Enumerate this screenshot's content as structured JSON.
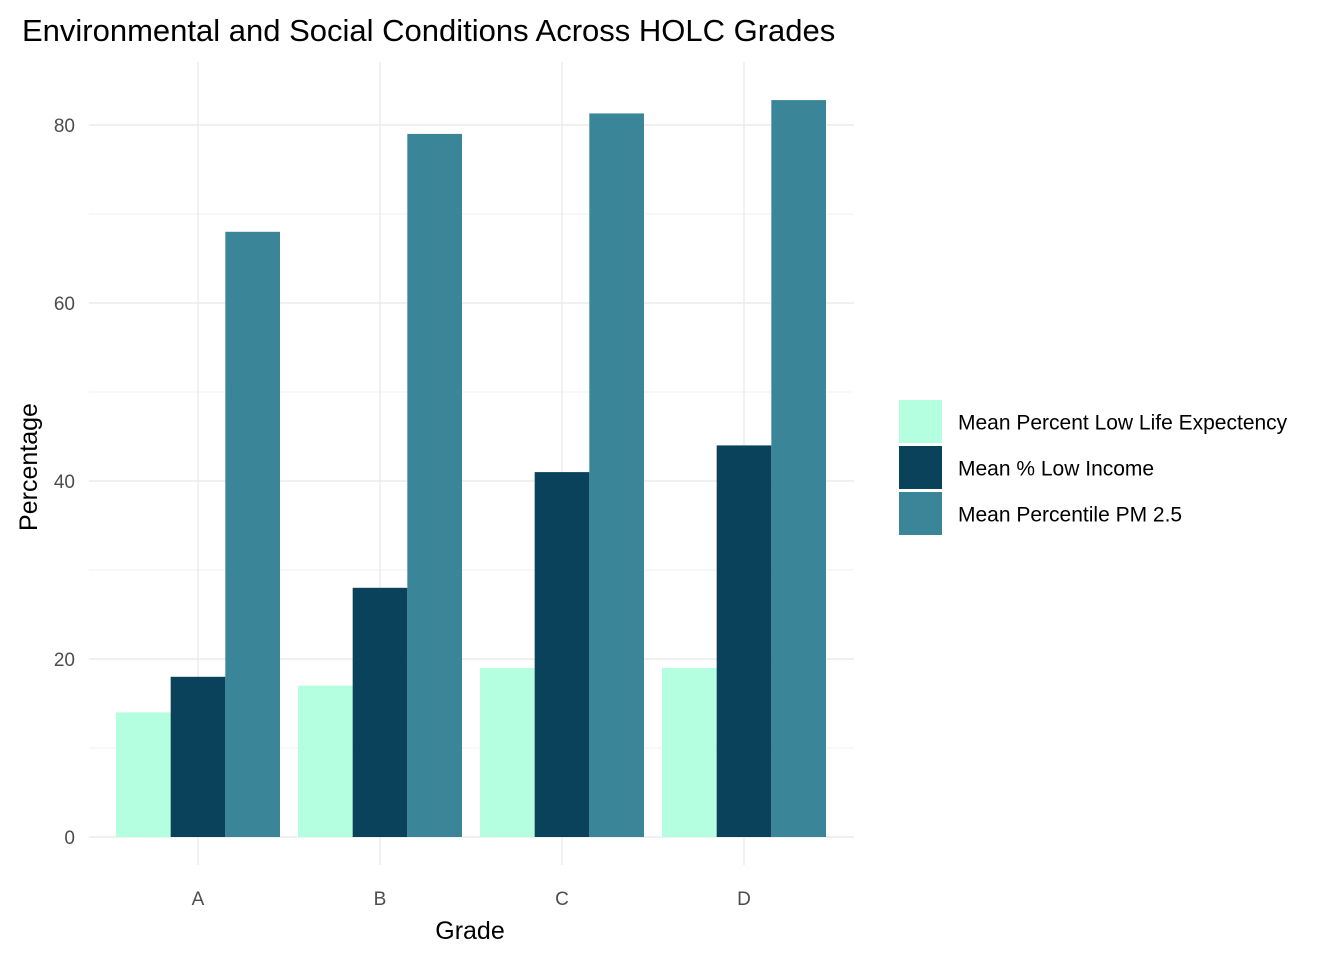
{
  "chart_data": {
    "type": "bar",
    "title": "Environmental and Social Conditions Across HOLC Grades",
    "xlabel": "Grade",
    "ylabel": "Percentage",
    "categories": [
      "A",
      "B",
      "C",
      "D"
    ],
    "series": [
      {
        "name": "Mean Percent Low Life Expectency",
        "color": "#b3ffe0",
        "values": [
          14,
          17,
          19,
          19
        ]
      },
      {
        "name": "Mean % Low Income",
        "color": "#0b425b",
        "values": [
          18,
          28,
          41,
          44
        ]
      },
      {
        "name": "Mean Percentile PM 2.5",
        "color": "#3a8698",
        "values": [
          68,
          79,
          81.3,
          82.8
        ]
      }
    ],
    "ylim": [
      0,
      85
    ],
    "yticks": [
      0,
      20,
      40,
      60,
      80
    ],
    "ytick_labels": [
      "0",
      "20",
      "40",
      "60",
      "80"
    ],
    "grid": true,
    "legend_position": "right",
    "bar_layout": "dodge"
  }
}
